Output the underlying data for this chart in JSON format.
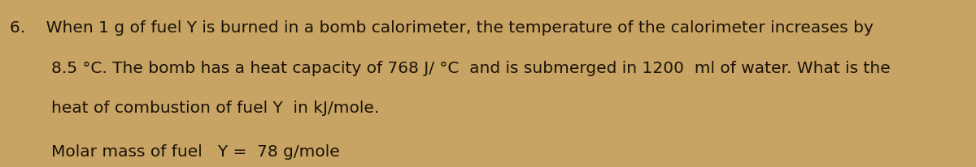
{
  "background_color": "#c8a464",
  "fig_width": 12.0,
  "fig_height": 2.07,
  "text_color": "#1a1208",
  "font_size": 14.5,
  "line1": "6.    When 1 g of fuel Y is burned in a bomb calorimeter, the temperature of the calorimeter increases by",
  "line2": "        8.5 °C. The bomb has a heat capacity of 768 J/ °C  and is submerged in 1200  ml of water. What is the",
  "line3": "        heat of combustion of fuel Y  in kJ/mole.",
  "line4": "        Molar mass of fuel   Y =  78 g/mole"
}
